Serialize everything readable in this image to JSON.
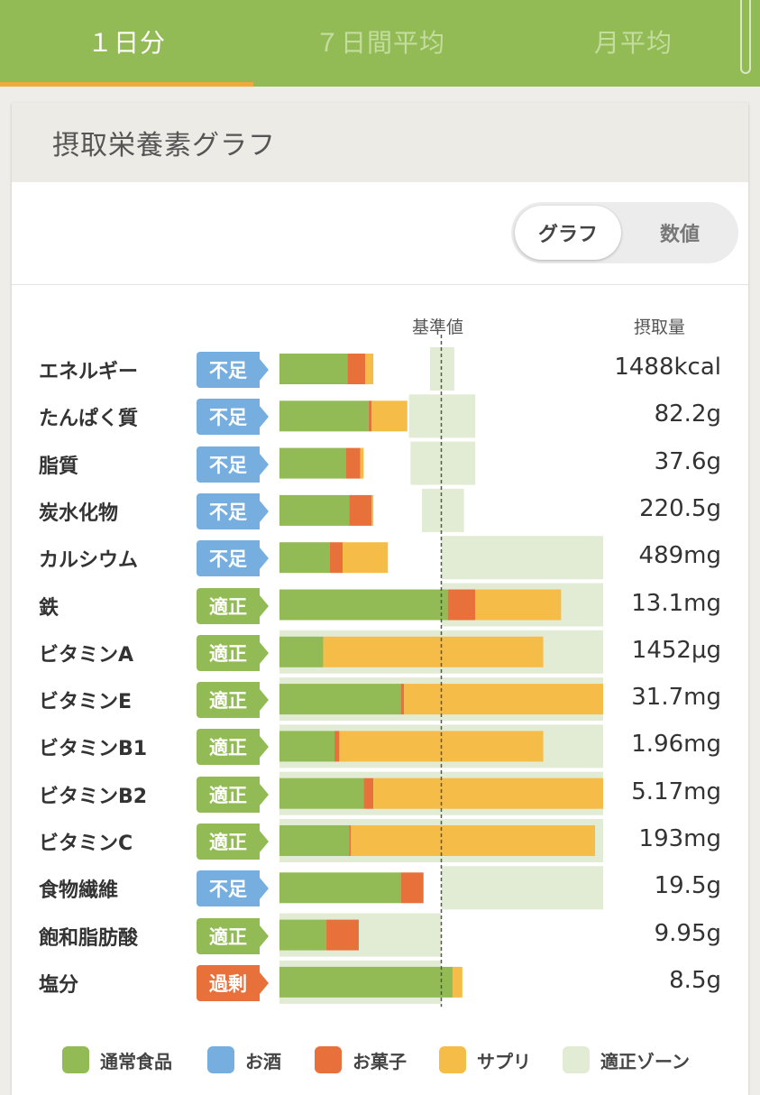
{
  "tabs": [
    {
      "label": "１日分",
      "active": true
    },
    {
      "label": "７日間平均",
      "active": false
    },
    {
      "label": "月平均",
      "active": false
    }
  ],
  "card": {
    "title": "摂取栄養素グラフ"
  },
  "view_toggle": {
    "graph": "グラフ",
    "numbers": "数値",
    "selected": "graph"
  },
  "colors": {
    "normal_food": "#92bb55",
    "alcohol": "#76aee0",
    "sweets": "#e8703a",
    "supplement": "#f5bd47",
    "zone": "#e2ebd3",
    "badge_low": "#76aee0",
    "badge_ok": "#92bb55",
    "badge_over": "#e8703a"
  },
  "chart_data": {
    "type": "bar",
    "orientation": "horizontal-stacked",
    "reference_label": "基準値",
    "value_header": "摂取量",
    "unit": "percent of reference value (基準値 = 100)",
    "xlim": [
      0,
      200
    ],
    "categories": [
      "エネルギー",
      "たんぱく質",
      "脂質",
      "炭水化物",
      "カルシウム",
      "鉄",
      "ビタミンA",
      "ビタミンE",
      "ビタミンB1",
      "ビタミンB2",
      "ビタミンC",
      "食物繊維",
      "飽和脂肪酸",
      "塩分"
    ],
    "status": [
      "不足",
      "不足",
      "不足",
      "不足",
      "不足",
      "適正",
      "適正",
      "適正",
      "適正",
      "適正",
      "適正",
      "不足",
      "適正",
      "過剰"
    ],
    "intake_labels": [
      "1488kcal",
      "82.2g",
      "37.6g",
      "220.5g",
      "489mg",
      "13.1mg",
      "1452μg",
      "31.7mg",
      "1.96mg",
      "5.17mg",
      "193mg",
      "19.5g",
      "9.95g",
      "8.5g"
    ],
    "series": [
      {
        "name": "通常食品",
        "values": [
          42,
          55,
          41,
          43,
          31,
          104,
          27,
          75,
          34,
          52,
          43,
          75,
          29,
          107
        ]
      },
      {
        "name": "お酒",
        "values": [
          0,
          0,
          0,
          0,
          0,
          0,
          0,
          0,
          0,
          0,
          0,
          0,
          0,
          0
        ]
      },
      {
        "name": "お菓子",
        "values": [
          11,
          2,
          9,
          14,
          8,
          17,
          0,
          2,
          3,
          6,
          1,
          14,
          20,
          0
        ]
      },
      {
        "name": "サプリ",
        "values": [
          5,
          22,
          2,
          1,
          28,
          53,
          136,
          123,
          126,
          142,
          151,
          0,
          0,
          6
        ]
      }
    ],
    "zones": [
      {
        "name": "適正ゾーン",
        "ranges": [
          [
            93,
            108
          ],
          [
            80,
            121
          ],
          [
            81,
            121
          ],
          [
            88,
            114
          ],
          [
            100,
            200
          ],
          [
            100,
            200
          ],
          [
            0,
            200
          ],
          [
            0,
            200
          ],
          [
            0,
            200
          ],
          [
            0,
            200
          ],
          [
            0,
            200
          ],
          [
            100,
            200
          ],
          [
            0,
            100
          ],
          [
            0,
            100
          ]
        ]
      }
    ],
    "legend": [
      "通常食品",
      "お酒",
      "お菓子",
      "サプリ",
      "適正ゾーン"
    ],
    "legend_position": "bottom"
  }
}
